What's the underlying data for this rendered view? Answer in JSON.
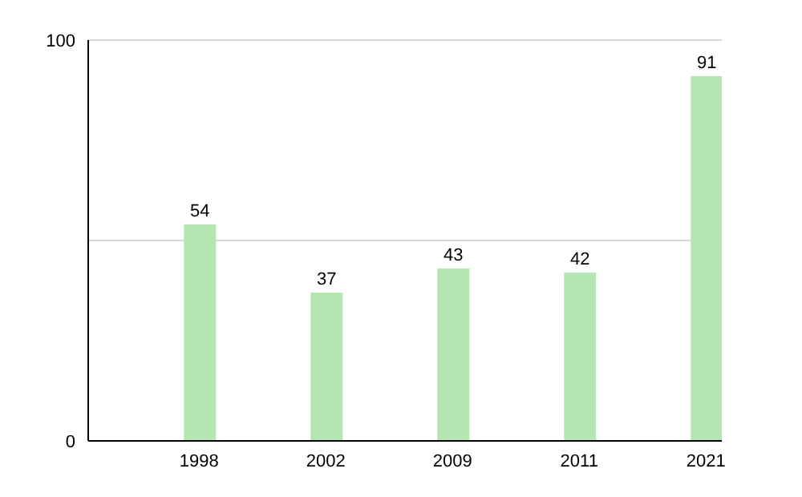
{
  "chart_data": {
    "type": "bar",
    "categories": [
      "1998",
      "2002",
      "2009",
      "2011",
      "2021"
    ],
    "values": [
      54,
      37,
      43,
      42,
      91
    ],
    "color": "#b3e6b0",
    "ylim": [
      0,
      100
    ],
    "yticks": [
      0,
      {
        "value": 50,
        "label": null
      },
      100
    ],
    "grid": "y",
    "data_labels": true
  }
}
